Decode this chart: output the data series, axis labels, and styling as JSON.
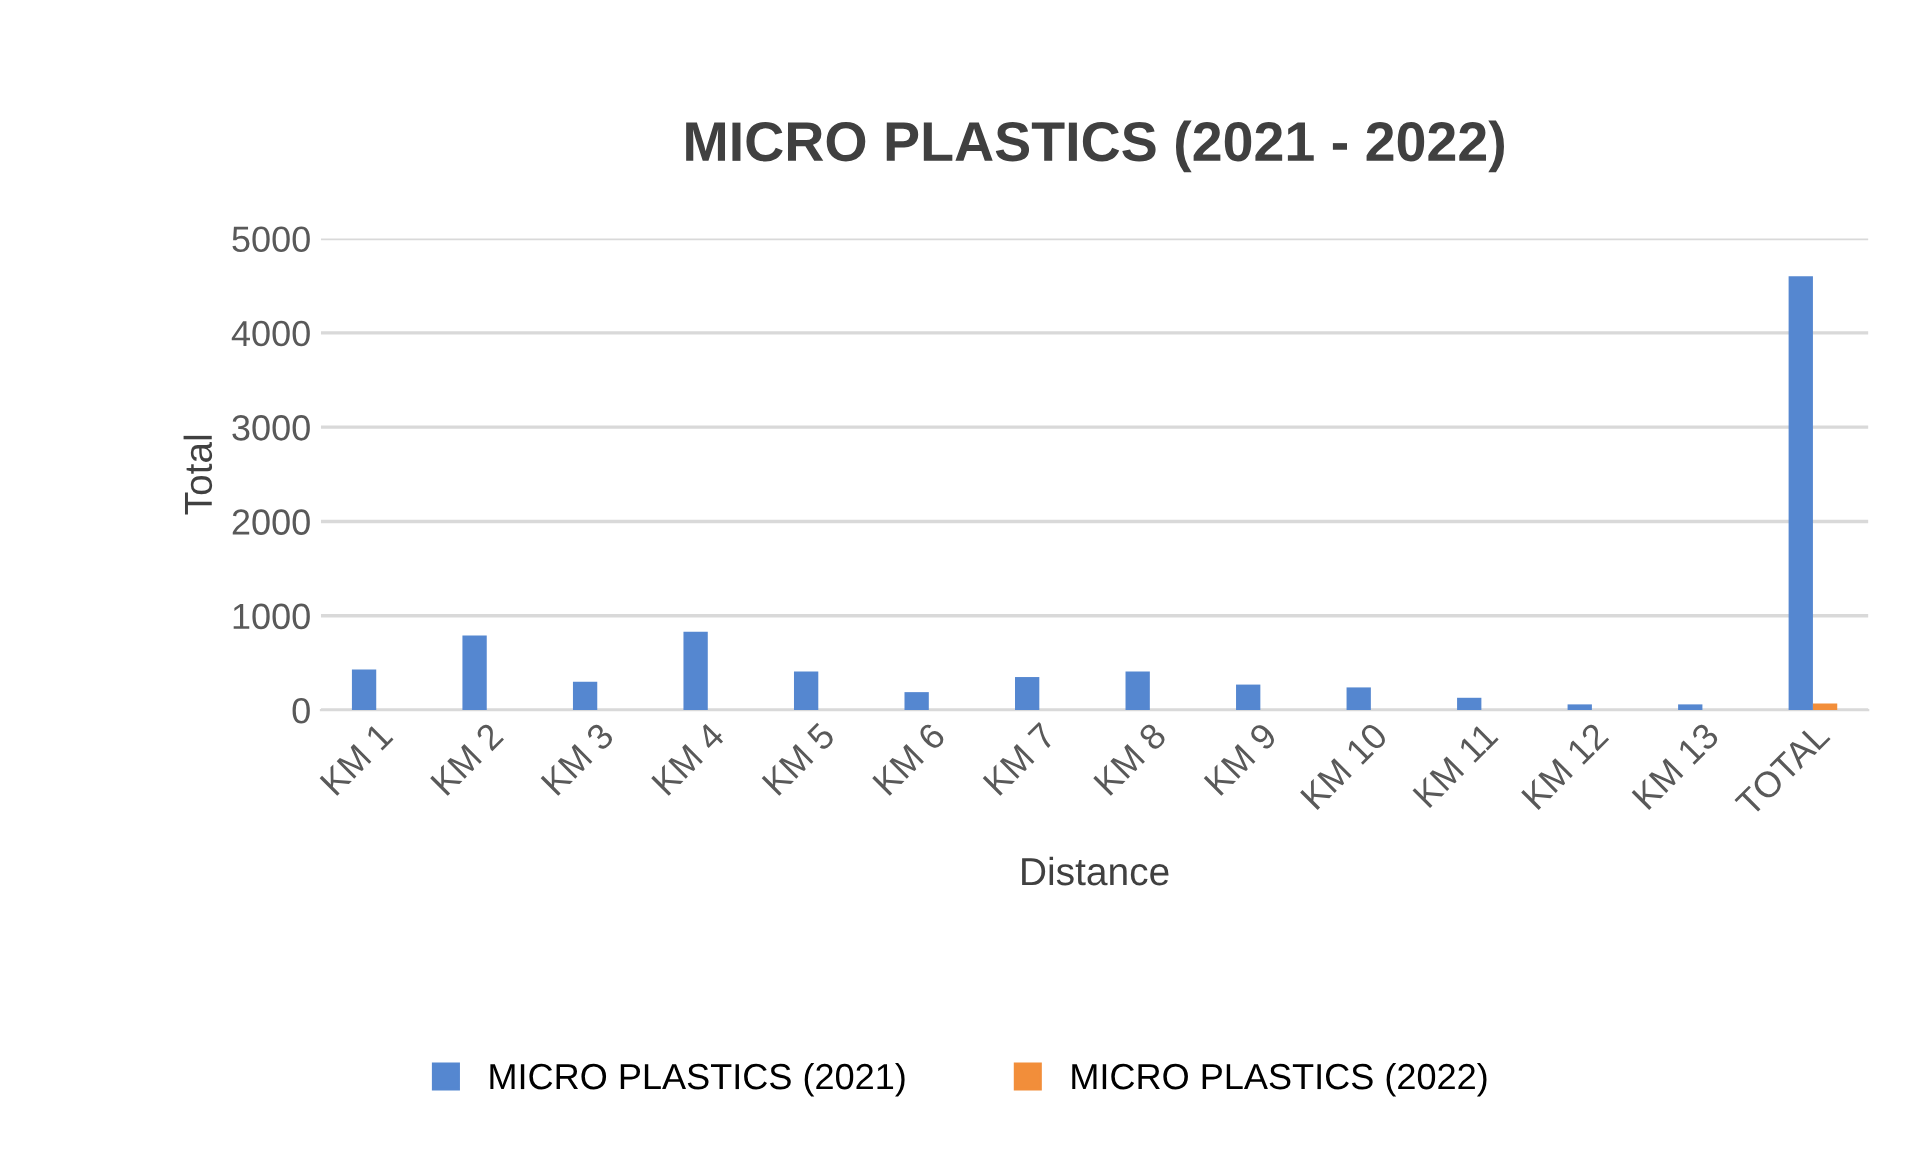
{
  "chart_data": {
    "type": "bar",
    "title": "MICRO PLASTICS (2021 - 2022)",
    "xlabel": "Distance",
    "ylabel": "Total",
    "categories": [
      "KM 1",
      "KM 2",
      "KM 3",
      "KM 4",
      "KM 5",
      "KM 6",
      "KM 7",
      "KM 8",
      "KM 9",
      "KM 10",
      "KM 11",
      "KM 12",
      "KM 13",
      "TOTAL"
    ],
    "series": [
      {
        "name": "MICRO PLASTICS (2021)",
        "color": "#5587d0",
        "values": [
          430,
          790,
          300,
          830,
          410,
          190,
          350,
          410,
          270,
          240,
          130,
          60,
          60,
          4600
        ]
      },
      {
        "name": "MICRO PLASTICS (2022)",
        "color": "#f28e3a",
        "values": [
          0,
          0,
          0,
          0,
          0,
          0,
          0,
          0,
          0,
          0,
          0,
          0,
          0,
          70
        ]
      }
    ],
    "ylim": [
      0,
      5000
    ],
    "yticks": [
      0,
      1000,
      2000,
      3000,
      4000,
      5000
    ],
    "grid": "y",
    "legend": "bottom"
  }
}
